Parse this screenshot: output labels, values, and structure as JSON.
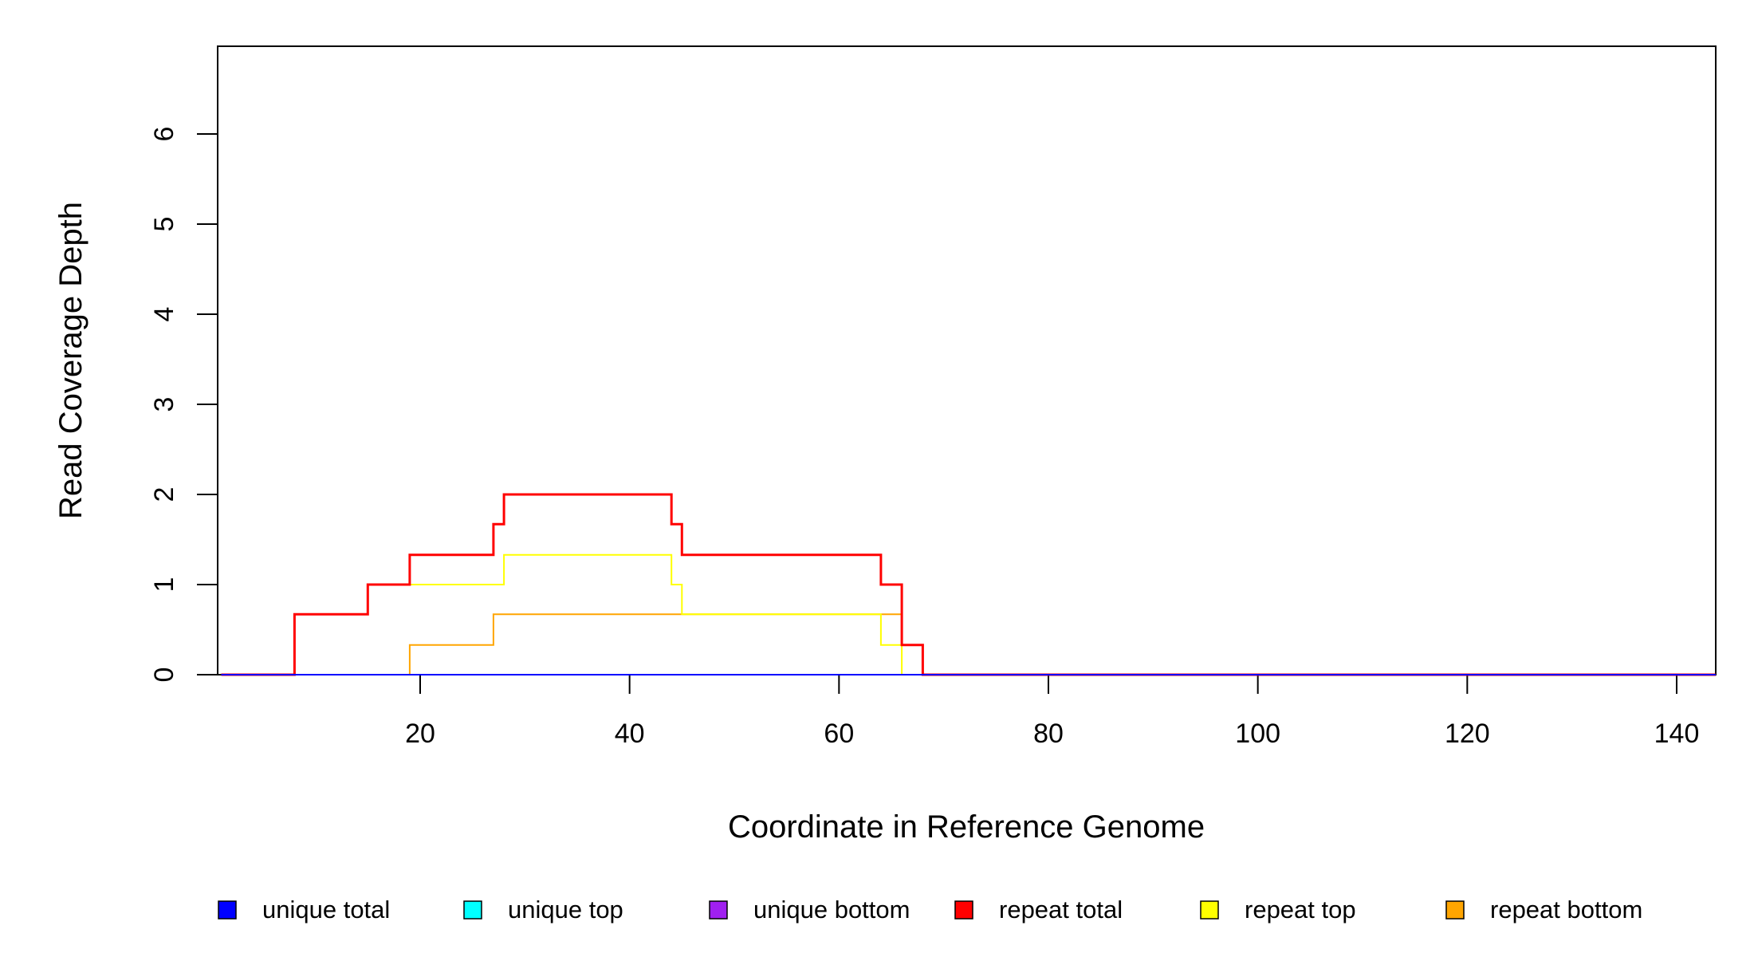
{
  "chart_data": {
    "type": "line",
    "title": "",
    "xlabel": "Coordinate in Reference Genome",
    "ylabel": "Read Coverage Depth",
    "xlim": [
      1,
      144
    ],
    "ylim": [
      0,
      7
    ],
    "x_ticks": [
      20,
      40,
      60,
      80,
      100,
      120,
      140
    ],
    "y_ticks": [
      0,
      1,
      2,
      3,
      4,
      5,
      6
    ],
    "grid": false,
    "legend_position": "bottom",
    "series": [
      {
        "name": "unique total",
        "color": "#0000ff",
        "points": [
          [
            1,
            0
          ],
          [
            144,
            0
          ]
        ]
      },
      {
        "name": "unique top",
        "color": "#00ffff",
        "points": [
          [
            1,
            0
          ],
          [
            144,
            0
          ]
        ]
      },
      {
        "name": "unique bottom",
        "color": "#a020f0",
        "points": [
          [
            1,
            0
          ],
          [
            144,
            0
          ]
        ]
      },
      {
        "name": "repeat total",
        "color": "#ff0000",
        "points": [
          [
            1,
            0
          ],
          [
            8,
            0
          ],
          [
            8,
            0.67
          ],
          [
            15,
            0.67
          ],
          [
            15,
            1
          ],
          [
            19,
            1
          ],
          [
            19,
            1.33
          ],
          [
            27,
            1.33
          ],
          [
            27,
            1.67
          ],
          [
            28,
            1.67
          ],
          [
            28,
            2
          ],
          [
            44,
            2
          ],
          [
            44,
            1.67
          ],
          [
            45,
            1.67
          ],
          [
            45,
            1.33
          ],
          [
            64,
            1.33
          ],
          [
            64,
            1
          ],
          [
            66,
            1
          ],
          [
            66,
            0.33
          ],
          [
            68,
            0.33
          ],
          [
            68,
            0
          ],
          [
            144,
            0
          ]
        ]
      },
      {
        "name": "repeat top",
        "color": "#ffff00",
        "points": [
          [
            1,
            0
          ],
          [
            8,
            0
          ],
          [
            8,
            0.67
          ],
          [
            15,
            0.67
          ],
          [
            15,
            1
          ],
          [
            28,
            1
          ],
          [
            28,
            1.33
          ],
          [
            44,
            1.33
          ],
          [
            44,
            1
          ],
          [
            45,
            1
          ],
          [
            45,
            0.67
          ],
          [
            64,
            0.67
          ],
          [
            64,
            0.33
          ],
          [
            66,
            0.33
          ],
          [
            66,
            0
          ],
          [
            144,
            0
          ]
        ]
      },
      {
        "name": "repeat bottom",
        "color": "#ffa500",
        "points": [
          [
            1,
            0
          ],
          [
            19,
            0
          ],
          [
            19,
            0.33
          ],
          [
            27,
            0.33
          ],
          [
            27,
            0.67
          ],
          [
            66,
            0.67
          ],
          [
            66,
            0.33
          ],
          [
            68,
            0.33
          ],
          [
            68,
            0
          ],
          [
            144,
            0
          ]
        ]
      }
    ]
  }
}
